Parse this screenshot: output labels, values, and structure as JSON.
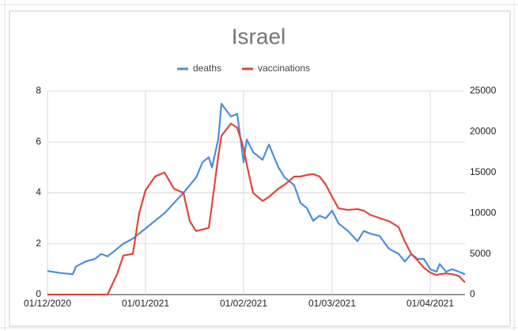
{
  "chart_data": {
    "type": "line",
    "title": "Israel",
    "x": [
      "2020-12-01",
      "2020-12-05",
      "2020-12-09",
      "2020-12-10",
      "2020-12-13",
      "2020-12-16",
      "2020-12-18",
      "2020-12-20",
      "2020-12-23",
      "2020-12-25",
      "2020-12-28",
      "2020-12-30",
      "2021-01-01",
      "2021-01-04",
      "2021-01-07",
      "2021-01-10",
      "2021-01-13",
      "2021-01-15",
      "2021-01-17",
      "2021-01-19",
      "2021-01-21",
      "2021-01-22",
      "2021-01-24",
      "2021-01-25",
      "2021-01-28",
      "2021-01-30",
      "2021-02-01",
      "2021-02-02",
      "2021-02-04",
      "2021-02-07",
      "2021-02-09",
      "2021-02-12",
      "2021-02-14",
      "2021-02-17",
      "2021-02-19",
      "2021-02-21",
      "2021-02-23",
      "2021-02-25",
      "2021-02-27",
      "2021-03-01",
      "2021-03-03",
      "2021-03-06",
      "2021-03-09",
      "2021-03-11",
      "2021-03-13",
      "2021-03-16",
      "2021-03-19",
      "2021-03-22",
      "2021-03-24",
      "2021-03-26",
      "2021-03-28",
      "2021-03-30",
      "2021-04-01",
      "2021-04-03",
      "2021-04-04",
      "2021-04-06",
      "2021-04-08",
      "2021-04-10",
      "2021-04-12"
    ],
    "series": [
      {
        "name": "deaths",
        "color": "#4a8fdb",
        "values": [
          0.93,
          0.85,
          0.8,
          1.1,
          1.3,
          1.4,
          1.6,
          1.5,
          1.8,
          2.0,
          2.2,
          2.4,
          2.6,
          2.9,
          3.2,
          3.6,
          4.0,
          4.3,
          4.6,
          5.2,
          5.4,
          5.0,
          6.1,
          7.5,
          7.0,
          7.1,
          5.2,
          6.1,
          5.6,
          5.3,
          5.9,
          5.0,
          4.6,
          4.3,
          3.6,
          3.4,
          2.9,
          3.1,
          3.0,
          3.3,
          2.8,
          2.5,
          2.1,
          2.5,
          2.4,
          2.3,
          1.8,
          1.6,
          1.3,
          1.6,
          1.4,
          1.4,
          1.0,
          0.9,
          1.2,
          0.9,
          1.0,
          0.9,
          0.8
        ]
      },
      {
        "name": "vaccinations",
        "color": "#e0453c",
        "axis": "y2",
        "values": [
          0,
          0,
          0,
          0,
          0,
          0,
          0,
          0,
          2500,
          4800,
          5000,
          10000,
          12800,
          14500,
          15000,
          13000,
          12500,
          9000,
          7800,
          8000,
          8200,
          11000,
          17000,
          19500,
          21000,
          20500,
          18000,
          16000,
          12500,
          11500,
          12000,
          13000,
          13500,
          14500,
          14500,
          14700,
          14800,
          14500,
          13500,
          12000,
          10600,
          10400,
          10500,
          10300,
          9800,
          9400,
          9000,
          8300,
          6500,
          5000,
          4200,
          3300,
          2700,
          2400,
          2500,
          2600,
          2500,
          2300,
          1500
        ]
      }
    ],
    "xlim": [
      "2020-12-01",
      "2021-04-12"
    ],
    "xticks": [
      {
        "value": "2020-12-01",
        "label": "01/12/2020"
      },
      {
        "value": "2021-01-01",
        "label": "01/01/2021"
      },
      {
        "value": "2021-02-01",
        "label": "01/02/2021"
      },
      {
        "value": "2021-03-01",
        "label": "01/03/2021"
      },
      {
        "value": "2021-04-01",
        "label": "01/04/2021"
      }
    ],
    "ylim": [
      0,
      8
    ],
    "yticks": [
      0,
      2,
      4,
      6,
      8
    ],
    "y2lim": [
      0,
      25000
    ],
    "y2ticks": [
      0,
      5000,
      10000,
      15000,
      20000,
      25000
    ],
    "grid": true,
    "legend": "top"
  }
}
